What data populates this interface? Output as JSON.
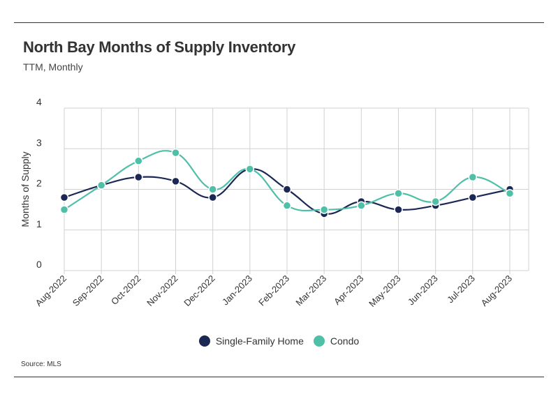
{
  "title": "North Bay Months of Supply Inventory",
  "subtitle": "TTM, Monthly",
  "source": "Source: MLS",
  "colors": {
    "single_family": "#1c2854",
    "condo": "#4fbfa8",
    "grid": "#d0d0d0"
  },
  "chart_data": {
    "type": "line",
    "smooth": true,
    "ylabel": "Months of Supply",
    "xlabel": "",
    "ylim": [
      0,
      4
    ],
    "yticks": [
      "0",
      "1",
      "2",
      "3",
      "4"
    ],
    "grid": true,
    "legend_position": "bottom-center",
    "categories": [
      "Aug-2022",
      "Sep-2022",
      "Oct-2022",
      "Nov-2022",
      "Dec-2022",
      "Jan-2023",
      "Feb-2023",
      "Mar-2023",
      "Apr-2023",
      "May-2023",
      "Jun-2023",
      "Jul-2023",
      "Aug-2023"
    ],
    "series": [
      {
        "name": "Single-Family Home",
        "color": "#1c2854",
        "values": [
          1.8,
          2.1,
          2.3,
          2.2,
          1.8,
          2.5,
          2.0,
          1.4,
          1.7,
          1.5,
          1.6,
          1.8,
          2.0
        ]
      },
      {
        "name": "Condo",
        "color": "#4fbfa8",
        "values": [
          1.5,
          2.1,
          2.7,
          2.9,
          2.0,
          2.5,
          1.6,
          1.5,
          1.6,
          1.9,
          1.7,
          2.3,
          1.9
        ]
      }
    ]
  }
}
